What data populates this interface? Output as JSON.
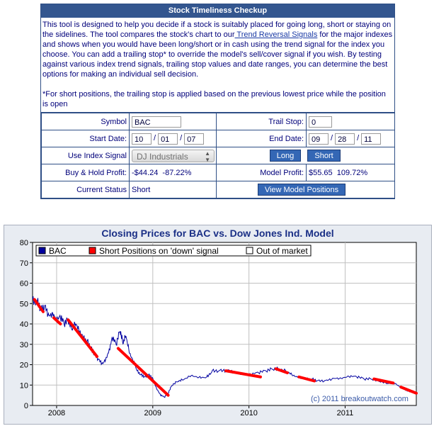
{
  "tool": {
    "title": "Stock Timeliness Checkup",
    "description_before_link": "This tool is designed to help you decide if a stock is suitably placed for going long, short or staying on the sidelines. The tool compares the stock's chart to our",
    "link_text": " Trend Reversal Signals",
    "description_after_link": " for the major indexes and shows when you would have been long/short or in cash using the trend signal for the index you choose. You can add a trailing stop* to override the model's sell/cover signal if you wish. By testing against various index trend signals, trailing stop values and date ranges, you can determine the best options for making an individual sell decision.",
    "footnote": "*For short positions, the trailing stop is applied based on the previous lowest price while the position is open",
    "symbol_label": "Symbol",
    "symbol_value": "BAC",
    "trail_stop_label": "Trail Stop:",
    "trail_stop_value": "0",
    "start_date_label": "Start Date:",
    "start_month": "10",
    "start_day": "01",
    "start_year": "07",
    "end_date_label": "End Date:",
    "end_month": "09",
    "end_day": "28",
    "end_year": "11",
    "date_separator": "/",
    "index_signal_label": "Use Index Signal",
    "index_signal_value": "DJ Industrials",
    "long_button": "Long",
    "short_button": "Short",
    "buy_hold_label": "Buy & Hold Profit:",
    "buy_hold_value": "-$44.24  -87.22%",
    "model_profit_label": "Model Profit:",
    "model_profit_value": "$55.65  109.72%",
    "current_status_label": "Current Status",
    "current_status_value": "Short",
    "view_positions_button": "View Model Positions"
  },
  "chart_data": {
    "type": "line",
    "title": "Closing Prices for BAC vs. Dow Jones Ind. Model",
    "xlabel": "",
    "ylabel": "",
    "ylim": [
      0,
      80
    ],
    "yticks": [
      0,
      10,
      20,
      30,
      40,
      50,
      60,
      70,
      80
    ],
    "xlim": [
      2007.75,
      2011.74
    ],
    "xticks": [
      {
        "value": 2008,
        "label": "2008"
      },
      {
        "value": 2009,
        "label": "2009"
      },
      {
        "value": 2010,
        "label": "2010"
      },
      {
        "value": 2011,
        "label": "2011"
      }
    ],
    "grid": true,
    "legend_placement": "top-left",
    "legend": [
      {
        "label": "BAC",
        "color": "#0000a0"
      },
      {
        "label": "Short Positions on 'down' signal",
        "color": "#ff0000"
      },
      {
        "label": "Out of market",
        "color": "#ffffff"
      }
    ],
    "watermark": "(c) 2011 breakoutwatch.com",
    "series": [
      {
        "name": "BAC",
        "color": "#0000a0",
        "points": [
          [
            2007.75,
            52
          ],
          [
            2007.8,
            51
          ],
          [
            2007.84,
            47
          ],
          [
            2007.88,
            48
          ],
          [
            2007.92,
            43
          ],
          [
            2007.96,
            44
          ],
          [
            2008.0,
            41
          ],
          [
            2008.04,
            43
          ],
          [
            2008.08,
            40
          ],
          [
            2008.12,
            42
          ],
          [
            2008.16,
            38
          ],
          [
            2008.2,
            41
          ],
          [
            2008.24,
            37
          ],
          [
            2008.28,
            34
          ],
          [
            2008.32,
            32
          ],
          [
            2008.36,
            28
          ],
          [
            2008.4,
            25
          ],
          [
            2008.44,
            22
          ],
          [
            2008.48,
            20
          ],
          [
            2008.52,
            23
          ],
          [
            2008.55,
            27
          ],
          [
            2008.58,
            33
          ],
          [
            2008.62,
            30
          ],
          [
            2008.66,
            37
          ],
          [
            2008.69,
            31
          ],
          [
            2008.72,
            35
          ],
          [
            2008.76,
            26
          ],
          [
            2008.8,
            22
          ],
          [
            2008.84,
            17
          ],
          [
            2008.88,
            15
          ],
          [
            2008.92,
            14
          ],
          [
            2008.96,
            15
          ],
          [
            2009.0,
            13
          ],
          [
            2009.04,
            8
          ],
          [
            2009.08,
            5
          ],
          [
            2009.12,
            4
          ],
          [
            2009.16,
            6
          ],
          [
            2009.2,
            10
          ],
          [
            2009.26,
            12
          ],
          [
            2009.32,
            13
          ],
          [
            2009.4,
            15
          ],
          [
            2009.48,
            14
          ],
          [
            2009.56,
            14
          ],
          [
            2009.62,
            17
          ],
          [
            2009.7,
            17
          ],
          [
            2009.78,
            17
          ],
          [
            2009.86,
            16
          ],
          [
            2009.94,
            15
          ],
          [
            2010.02,
            15
          ],
          [
            2010.1,
            16
          ],
          [
            2010.18,
            17
          ],
          [
            2010.25,
            18
          ],
          [
            2010.32,
            18
          ],
          [
            2010.4,
            17
          ],
          [
            2010.46,
            15
          ],
          [
            2010.52,
            14
          ],
          [
            2010.6,
            13
          ],
          [
            2010.66,
            13
          ],
          [
            2010.72,
            12
          ],
          [
            2010.8,
            12
          ],
          [
            2010.88,
            13
          ],
          [
            2010.96,
            13
          ],
          [
            2011.04,
            14
          ],
          [
            2011.12,
            14
          ],
          [
            2011.2,
            13
          ],
          [
            2011.28,
            13
          ],
          [
            2011.36,
            12
          ],
          [
            2011.44,
            11
          ],
          [
            2011.52,
            11
          ],
          [
            2011.58,
            9
          ],
          [
            2011.62,
            8
          ],
          [
            2011.66,
            7
          ],
          [
            2011.7,
            7
          ],
          [
            2011.74,
            6
          ]
        ]
      },
      {
        "name": "Short Positions on 'down' signal",
        "color": "#ff0000",
        "segments": [
          [
            [
              2007.77,
              52
            ],
            [
              2007.86,
              46
            ]
          ],
          [
            [
              2007.97,
              43
            ],
            [
              2008.04,
              40
            ]
          ],
          [
            [
              2008.12,
              42
            ],
            [
              2008.42,
              24
            ]
          ],
          [
            [
              2008.64,
              28
            ],
            [
              2009.16,
              5
            ]
          ],
          [
            [
              2009.76,
              17
            ],
            [
              2010.12,
              14
            ]
          ],
          [
            [
              2010.28,
              18
            ],
            [
              2010.4,
              16
            ]
          ],
          [
            [
              2010.52,
              14
            ],
            [
              2010.68,
              12
            ]
          ],
          [
            [
              2011.3,
              13
            ],
            [
              2011.5,
              11
            ]
          ],
          [
            [
              2011.58,
              9
            ],
            [
              2011.74,
              6
            ]
          ]
        ]
      }
    ]
  }
}
